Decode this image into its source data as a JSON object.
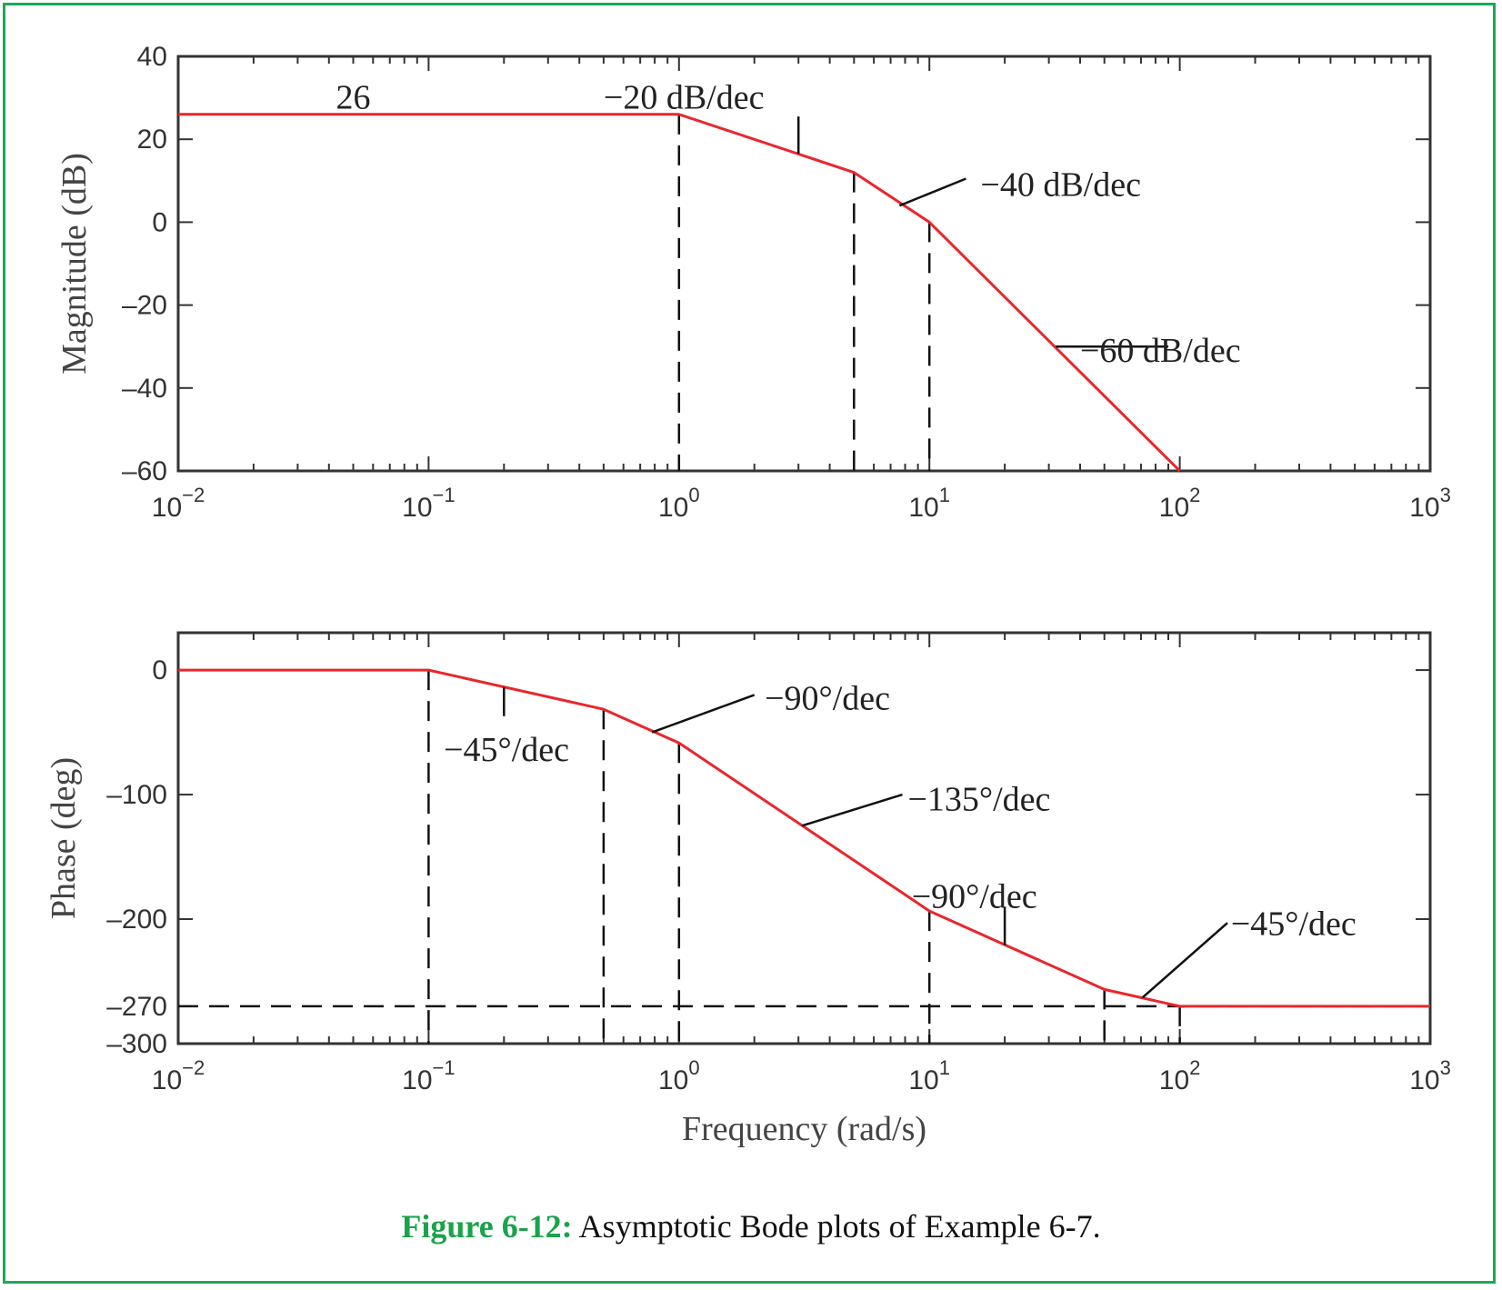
{
  "caption": {
    "label": "Figure 6-12:",
    "text": " Asymptotic Bode plots of Example 6-7.",
    "label_color": "#1aa34a"
  },
  "colors": {
    "curve": "#e8272c",
    "frame_border": "#1aaa55",
    "axes": "#333333",
    "guides": "#111111"
  },
  "chart_data": [
    {
      "type": "line",
      "xscale": "log",
      "xlim": [
        0.01,
        1000
      ],
      "ylim": [
        -60,
        40
      ],
      "xlabel": "",
      "ylabel": "Magnitude (dB)",
      "xticks": [
        {
          "value": 0.01,
          "base": "10",
          "exp": "−2"
        },
        {
          "value": 0.1,
          "base": "10",
          "exp": "−1"
        },
        {
          "value": 1,
          "base": "10",
          "exp": "0"
        },
        {
          "value": 10,
          "base": "10",
          "exp": "1"
        },
        {
          "value": 100,
          "base": "10",
          "exp": "2"
        },
        {
          "value": 1000,
          "base": "10",
          "exp": "3"
        }
      ],
      "yticks": [
        {
          "value": 40,
          "label": "40"
        },
        {
          "value": 20,
          "label": "20"
        },
        {
          "value": 0,
          "label": "0"
        },
        {
          "value": -20,
          "label": "–20"
        },
        {
          "value": -40,
          "label": "–40"
        },
        {
          "value": -60,
          "label": "–60"
        }
      ],
      "series": [
        {
          "x": [
            0.01,
            1,
            5,
            10,
            100
          ],
          "y": [
            26,
            26,
            12,
            0,
            -60
          ]
        }
      ],
      "guides": [
        {
          "x": [
            1,
            1
          ],
          "y": [
            26,
            -60
          ]
        },
        {
          "x": [
            5,
            5
          ],
          "y": [
            12,
            -60
          ]
        },
        {
          "x": [
            10,
            10
          ],
          "y": [
            0,
            -60
          ]
        }
      ],
      "annotations": [
        {
          "text": "26",
          "x": 0.05,
          "y": 30,
          "anchor": "middle"
        },
        {
          "text": "−20 dB/dec",
          "x": 0.5,
          "y": 30,
          "anchor": "start",
          "leader": {
            "x1": 3,
            "y1": 16.5,
            "x2": 3,
            "y2": 25.5
          }
        },
        {
          "text": "−40 dB/dec",
          "x": 16,
          "y": 9,
          "anchor": "start",
          "leader": {
            "x1": 7.6,
            "y1": 4,
            "x2": 14,
            "y2": 10.5
          }
        },
        {
          "text": "−60 dB/dec",
          "x": 40,
          "y": -31,
          "anchor": "start",
          "leader": {
            "x1": 32,
            "y1": -30,
            "x2": 90,
            "y2": -30
          }
        }
      ]
    },
    {
      "type": "line",
      "xscale": "log",
      "xlim": [
        0.01,
        1000
      ],
      "ylim": [
        -300,
        30
      ],
      "xlabel": "Frequency (rad/s)",
      "ylabel": "Phase (deg)",
      "xticks": [
        {
          "value": 0.01,
          "base": "10",
          "exp": "−2"
        },
        {
          "value": 0.1,
          "base": "10",
          "exp": "−1"
        },
        {
          "value": 1,
          "base": "10",
          "exp": "0"
        },
        {
          "value": 10,
          "base": "10",
          "exp": "1"
        },
        {
          "value": 100,
          "base": "10",
          "exp": "2"
        },
        {
          "value": 1000,
          "base": "10",
          "exp": "3"
        }
      ],
      "yticks": [
        {
          "value": 0,
          "label": "0"
        },
        {
          "value": -100,
          "label": "–100"
        },
        {
          "value": -200,
          "label": "–200"
        },
        {
          "value": -270,
          "label": "–270"
        },
        {
          "value": -300,
          "label": "–300"
        }
      ],
      "series": [
        {
          "x": [
            0.01,
            0.1,
            0.5,
            1,
            10,
            50,
            100,
            1000
          ],
          "y": [
            0,
            0,
            -31.5,
            -58.5,
            -193.5,
            -256.5,
            -270,
            -270
          ]
        }
      ],
      "guides": [
        {
          "x": [
            0.1,
            0.1
          ],
          "y": [
            0,
            -300
          ]
        },
        {
          "x": [
            0.5,
            0.5
          ],
          "y": [
            -31.5,
            -300
          ]
        },
        {
          "x": [
            1,
            1
          ],
          "y": [
            -58.5,
            -300
          ]
        },
        {
          "x": [
            10,
            10
          ],
          "y": [
            -193.5,
            -300
          ]
        },
        {
          "x": [
            50,
            50
          ],
          "y": [
            -256.5,
            -300
          ]
        },
        {
          "x": [
            100,
            100
          ],
          "y": [
            -270,
            -300
          ]
        },
        {
          "x": [
            0.01,
            1000
          ],
          "y": [
            -270,
            -270
          ]
        }
      ],
      "annotations": [
        {
          "text": "−45°/dec",
          "x": 0.115,
          "y": -64,
          "anchor": "start",
          "leader": {
            "x1": 0.2,
            "y1": -13.5,
            "x2": 0.2,
            "y2": -37
          }
        },
        {
          "text": "−90°/dec",
          "x": 2.2,
          "y": -23,
          "anchor": "start",
          "leader": {
            "x1": 0.78,
            "y1": -50,
            "x2": 2.0,
            "y2": -20
          }
        },
        {
          "text": "−135°/dec",
          "x": 8.2,
          "y": -104,
          "anchor": "start",
          "leader": {
            "x1": 3.1,
            "y1": -125,
            "x2": 7.8,
            "y2": -100
          }
        },
        {
          "text": "−90°/dec",
          "x": 8.5,
          "y": -182,
          "anchor": "start",
          "leader": {
            "x1": 20,
            "y1": -221,
            "x2": 20,
            "y2": -190
          }
        },
        {
          "text": "−45°/dec",
          "x": 160,
          "y": -204,
          "anchor": "start",
          "leader": {
            "x1": 71,
            "y1": -263,
            "x2": 155,
            "y2": -203
          }
        }
      ]
    }
  ]
}
